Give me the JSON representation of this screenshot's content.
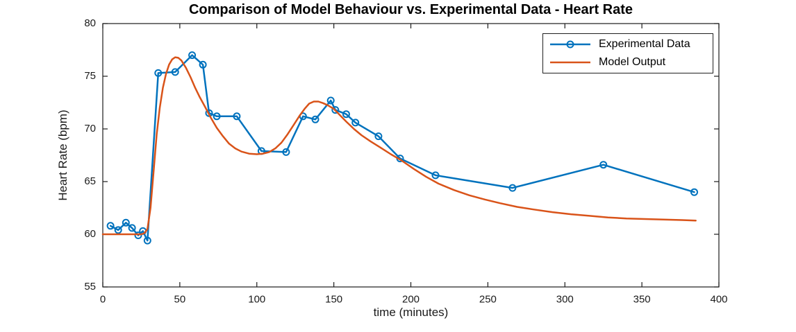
{
  "chart_data": {
    "type": "line",
    "title": "Comparison of Model Behaviour vs. Experimental Data - Heart Rate",
    "xlabel": "time (minutes)",
    "ylabel": "Heart Rate (bpm)",
    "xlim": [
      0,
      400
    ],
    "ylim": [
      55,
      80
    ],
    "xticks": [
      0,
      50,
      100,
      150,
      200,
      250,
      300,
      350,
      400
    ],
    "yticks": [
      55,
      60,
      65,
      70,
      75,
      80
    ],
    "grid": false,
    "legend_position": "top-right",
    "axis_color": "#1a1a1a",
    "series": [
      {
        "name": "Experimental Data",
        "color": "#0072BD",
        "marker": "o",
        "line_width": 2.5,
        "x": [
          5,
          10,
          15,
          19,
          23,
          26,
          29,
          36,
          47,
          58,
          65,
          69,
          74,
          87,
          103,
          119,
          130,
          138,
          148,
          151,
          158,
          164,
          179,
          193,
          216,
          266,
          325,
          384
        ],
        "y": [
          60.8,
          60.4,
          61.1,
          60.6,
          59.9,
          60.3,
          59.4,
          75.3,
          75.4,
          77.0,
          76.1,
          71.5,
          71.2,
          71.2,
          67.9,
          67.8,
          71.2,
          70.9,
          72.7,
          71.8,
          71.4,
          70.6,
          69.3,
          67.2,
          65.6,
          64.4,
          66.6,
          64.0
        ]
      },
      {
        "name": "Model Output",
        "color": "#D95319",
        "marker": "none",
        "line_width": 2.5,
        "x": [
          0,
          10,
          20,
          25,
          27,
          29,
          31,
          33,
          35,
          37,
          39,
          41,
          43,
          45,
          47,
          49,
          51,
          54,
          57,
          60,
          63,
          66,
          70,
          74,
          78,
          82,
          86,
          90,
          95,
          100,
          104,
          108,
          112,
          116,
          120,
          124,
          128,
          131,
          134,
          137,
          140,
          143,
          146,
          150,
          154,
          158,
          163,
          168,
          174,
          180,
          187,
          194,
          202,
          210,
          218,
          228,
          238,
          248,
          258,
          269,
          280,
          292,
          304,
          316,
          328,
          340,
          352,
          364,
          376,
          385
        ],
        "y": [
          60,
          60,
          60,
          60,
          60.1,
          60.5,
          62.5,
          66.0,
          69.5,
          72.0,
          73.9,
          75.2,
          76.1,
          76.6,
          76.8,
          76.75,
          76.5,
          75.8,
          74.9,
          73.9,
          73.0,
          72.2,
          71.1,
          70.1,
          69.3,
          68.6,
          68.15,
          67.85,
          67.65,
          67.6,
          67.65,
          67.8,
          68.15,
          68.7,
          69.5,
          70.4,
          71.3,
          71.9,
          72.4,
          72.6,
          72.6,
          72.45,
          72.25,
          71.9,
          71.3,
          70.7,
          70.0,
          69.4,
          68.8,
          68.25,
          67.6,
          67.0,
          66.2,
          65.45,
          64.8,
          64.2,
          63.7,
          63.3,
          62.95,
          62.6,
          62.35,
          62.1,
          61.9,
          61.75,
          61.6,
          61.5,
          61.45,
          61.4,
          61.35,
          61.3
        ]
      }
    ]
  }
}
